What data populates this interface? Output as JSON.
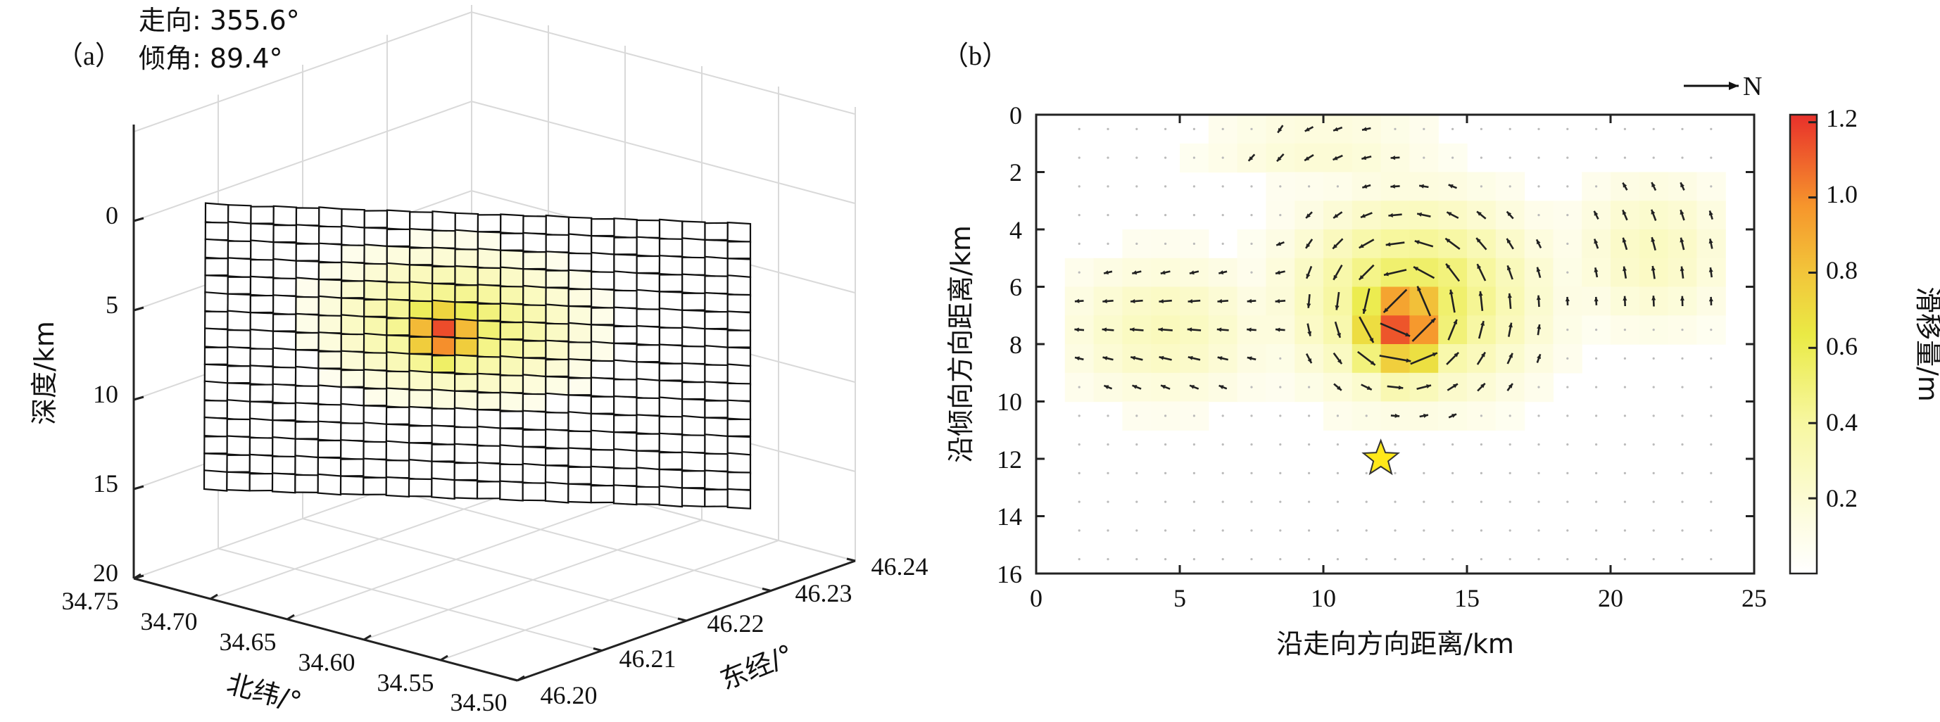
{
  "colors": {
    "low": "#fdfce8",
    "mid": "#eded4a",
    "orange": "#f6962c",
    "high": "#e8302b",
    "star": "#ffe81a",
    "arrow": "#222222",
    "grid": "#d9d9d9"
  },
  "panel_a": {
    "label": "（a）",
    "strike_text": "走向: 355.6°",
    "dip_text": "倾角: 89.4°"
  },
  "panel_b": {
    "label": "（b）",
    "north_text": "N"
  },
  "chart_data": [
    {
      "type": "heatmap",
      "panel": "a",
      "title": "",
      "zlabel": "深度/km",
      "xlabel": "北纬/°",
      "ylabel": "东经/°",
      "depth_ticks": [
        "0",
        "5",
        "10",
        "15",
        "20"
      ],
      "depth_range": [
        -4,
        20
      ],
      "lat_ticks": [
        "34.75",
        "34.70",
        "34.65",
        "34.60",
        "34.55",
        "34.50"
      ],
      "lon_ticks": [
        "46.20",
        "46.21",
        "46.22",
        "46.23",
        "46.24"
      ],
      "strike_deg": 355.6,
      "dip_deg": 89.4,
      "fault_depth_range": [
        0,
        16
      ],
      "slip_peak": {
        "strike_km": 12.5,
        "dip_km": 7,
        "value": 1.2
      }
    },
    {
      "type": "heatmap",
      "panel": "b",
      "title": "",
      "xlabel": "沿走向方向距离/km",
      "ylabel": "沿倾向方向距离/km",
      "x_ticks": [
        "0",
        "5",
        "10",
        "15",
        "20",
        "25"
      ],
      "y_ticks": [
        "0",
        "2",
        "4",
        "6",
        "8",
        "10",
        "12",
        "14",
        "16"
      ],
      "xlim": [
        0,
        25
      ],
      "ylim": [
        0,
        16
      ],
      "cell_size_km": 1,
      "hypocenter": {
        "x": 12,
        "y": 12
      },
      "colorbar": {
        "label": "滑移量/m",
        "ticks": [
          "0.2",
          "0.4",
          "0.6",
          "0.8",
          "1.0",
          "1.2"
        ],
        "range": [
          0,
          1.22
        ]
      },
      "slip_max": 1.2
    }
  ]
}
